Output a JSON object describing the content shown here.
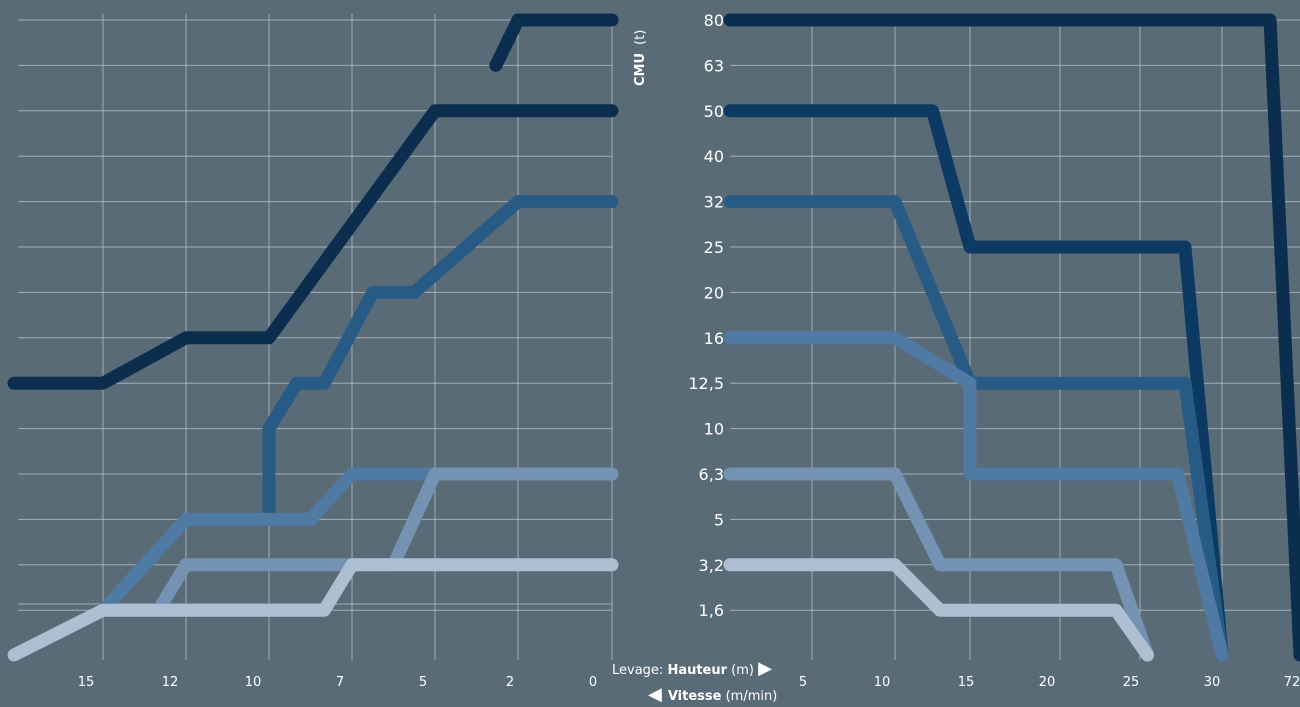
{
  "chart_data": [
    {
      "type": "line",
      "panel": "left",
      "x_direction": "reversed",
      "x_ticks": [
        "15",
        "12",
        "10",
        "7",
        "5",
        "2",
        "0"
      ],
      "grid": true,
      "series": [
        {
          "color": "#0b2e4f",
          "points": [
            [
              16.5,
              "12,5"
            ],
            [
              15,
              "12,5"
            ],
            [
              12,
              "16"
            ],
            [
              10,
              "16"
            ],
            [
              5,
              "50"
            ],
            [
              2,
              "50"
            ],
            [
              0,
              "50"
            ]
          ]
        },
        {
          "color": "#0b2e4f",
          "points": [
            [
              2.8,
              "63"
            ],
            [
              2,
              "80"
            ],
            [
              0,
              "80"
            ]
          ]
        },
        {
          "color": "#275b86",
          "points": [
            [
              10,
              "5"
            ],
            [
              10,
              "10"
            ],
            [
              9,
              "12,5"
            ],
            [
              8,
              "12,5"
            ],
            [
              6.5,
              "20"
            ],
            [
              5.5,
              "20"
            ],
            [
              2,
              "32"
            ],
            [
              0,
              "32"
            ]
          ]
        },
        {
          "color": "#4f7aa3",
          "points": [
            [
              15,
              "1,6"
            ],
            [
              12,
              "5"
            ],
            [
              8.5,
              "5"
            ],
            [
              7,
              "6,3"
            ],
            [
              0,
              "6,3"
            ]
          ]
        },
        {
          "color": "#7493b2",
          "points": [
            [
              13,
              "1,6"
            ],
            [
              12,
              "3,2"
            ],
            [
              6,
              "3,2"
            ],
            [
              5,
              "6,3"
            ],
            [
              0,
              "6,3"
            ]
          ]
        },
        {
          "color": "#aebfd1",
          "points": [
            [
              16.5,
              "(bottom)"
            ],
            [
              15,
              "1,6"
            ],
            [
              8,
              "1,6"
            ],
            [
              7,
              "3,2"
            ],
            [
              0,
              "3,2"
            ]
          ]
        }
      ]
    },
    {
      "type": "line",
      "panel": "right",
      "x_ticks": [
        "5",
        "10",
        "15",
        "20",
        "25",
        "30",
        "72"
      ],
      "y_ticks": [
        "80",
        "63",
        "50",
        "40",
        "32",
        "25",
        "20",
        "16",
        "12,5",
        "10",
        "6,3",
        "5",
        "3,2",
        "1,6"
      ],
      "grid": true,
      "series": [
        {
          "color": "#0b2e4f",
          "points": [
            [
              0,
              "80"
            ],
            [
              32,
              "80"
            ],
            [
              72,
              "(bottom)"
            ]
          ]
        },
        {
          "color": "#0d3a62",
          "points": [
            [
              0,
              "50"
            ],
            [
              12.5,
              "50"
            ],
            [
              15,
              "25"
            ],
            [
              28,
              "25"
            ],
            [
              30,
              "(bottom)"
            ]
          ]
        },
        {
          "color": "#275b86",
          "points": [
            [
              0,
              "32"
            ],
            [
              10,
              "32"
            ],
            [
              15,
              "12,5"
            ],
            [
              28,
              "12,5"
            ],
            [
              30,
              "(bottom)"
            ]
          ]
        },
        {
          "color": "#4f7aa3",
          "points": [
            [
              0,
              "16"
            ],
            [
              10,
              "16"
            ],
            [
              15,
              "12,5"
            ],
            [
              15,
              "6,3"
            ],
            [
              27.5,
              "6,3"
            ],
            [
              30,
              "(bottom)"
            ]
          ]
        },
        {
          "color": "#7493b2",
          "points": [
            [
              0,
              "6,3"
            ],
            [
              10,
              "6,3"
            ],
            [
              13,
              "3,2"
            ],
            [
              23.5,
              "3,2"
            ],
            [
              25.5,
              "(bottom)"
            ]
          ]
        },
        {
          "color": "#aebfd1",
          "points": [
            [
              0,
              "3,2"
            ],
            [
              10,
              "3,2"
            ],
            [
              13,
              "1,6"
            ],
            [
              23.5,
              "1,6"
            ],
            [
              25.5,
              "(bottom)"
            ]
          ]
        }
      ]
    }
  ],
  "labels": {
    "y_axis_title": "CMU",
    "y_axis_unit": "(t)",
    "x_caption_lift_prefix": "Levage: ",
    "x_caption_lift_bold": "Hauteur",
    "x_caption_lift_unit": " (m) ",
    "x_caption_lift_arrow": "▶",
    "x_caption_speed_arrow": "◀",
    "x_caption_speed_bold": "Vitesse",
    "x_caption_speed_unit": " (m/min)"
  },
  "colors": {
    "background": "#5a6b78",
    "grid": "#b9c4cc"
  }
}
